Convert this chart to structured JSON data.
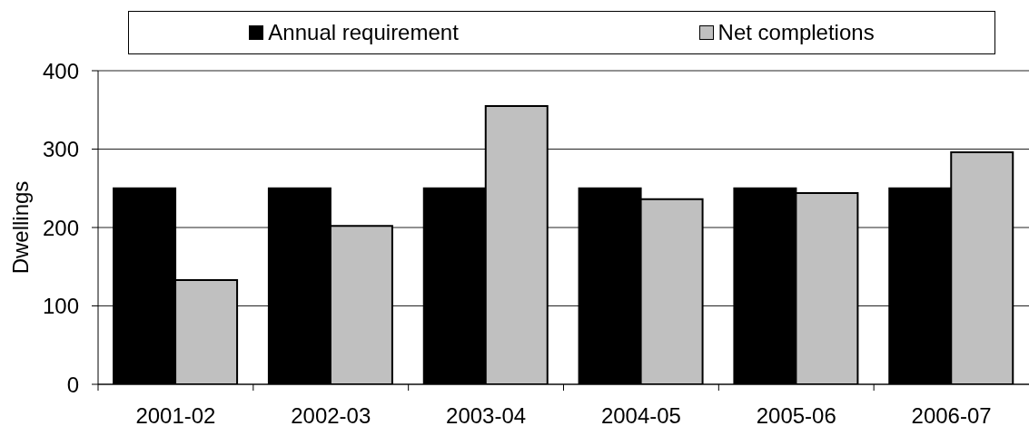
{
  "chart_data": {
    "type": "bar",
    "ylabel": "Dwellings",
    "categories": [
      "2001-02",
      "2002-03",
      "2003-04",
      "2004-05",
      "2005-06",
      "2006-07"
    ],
    "series": [
      {
        "name": "Annual requirement",
        "color": "#000000",
        "values": [
          250,
          250,
          250,
          250,
          250,
          250
        ]
      },
      {
        "name": "Net completions",
        "color": "#c0c0c0",
        "values": [
          133,
          202,
          355,
          236,
          244,
          296
        ]
      }
    ],
    "ylim": [
      0,
      400
    ],
    "yticks": [
      0,
      100,
      200,
      300,
      400
    ],
    "grid": "y",
    "legend": "top"
  }
}
